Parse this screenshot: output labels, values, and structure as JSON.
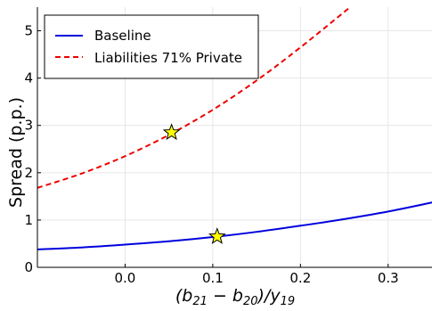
{
  "chart_data": {
    "type": "line",
    "xlabel_parts": [
      "(b",
      "21",
      " − b",
      "20",
      ")/y",
      "19"
    ],
    "ylabel": "Spread (p.p.)",
    "xlim": [
      -0.1,
      0.35
    ],
    "ylim": [
      0,
      5.5
    ],
    "xticks": [
      0.0,
      0.1,
      0.2,
      0.3
    ],
    "xtick_labels": [
      "0.0",
      "0.1",
      "0.2",
      "0.3"
    ],
    "yticks": [
      0,
      1,
      2,
      3,
      4,
      5
    ],
    "ytick_labels": [
      "0",
      "1",
      "2",
      "3",
      "4",
      "5"
    ],
    "grid": true,
    "legend_position": "top-left",
    "series": [
      {
        "name": "Baseline",
        "color": "#0000dd",
        "dash": "solid",
        "x": [
          -0.1,
          -0.05,
          0.0,
          0.05,
          0.1,
          0.15,
          0.2,
          0.25,
          0.3,
          0.35
        ],
        "y": [
          0.38,
          0.42,
          0.48,
          0.55,
          0.64,
          0.75,
          0.88,
          1.02,
          1.18,
          1.37
        ]
      },
      {
        "name": "Liabilities 71% Private",
        "color": "#ee0000",
        "dash": "dashed",
        "x": [
          -0.1,
          -0.05,
          0.0,
          0.05,
          0.1,
          0.15,
          0.2,
          0.26
        ],
        "y": [
          1.68,
          1.98,
          2.35,
          2.8,
          3.33,
          3.95,
          4.65,
          5.55
        ]
      }
    ],
    "markers": [
      {
        "x": 0.053,
        "y": 2.85,
        "shape": "star",
        "color": "#ffff00"
      },
      {
        "x": 0.105,
        "y": 0.65,
        "shape": "star",
        "color": "#ffff00"
      }
    ]
  }
}
